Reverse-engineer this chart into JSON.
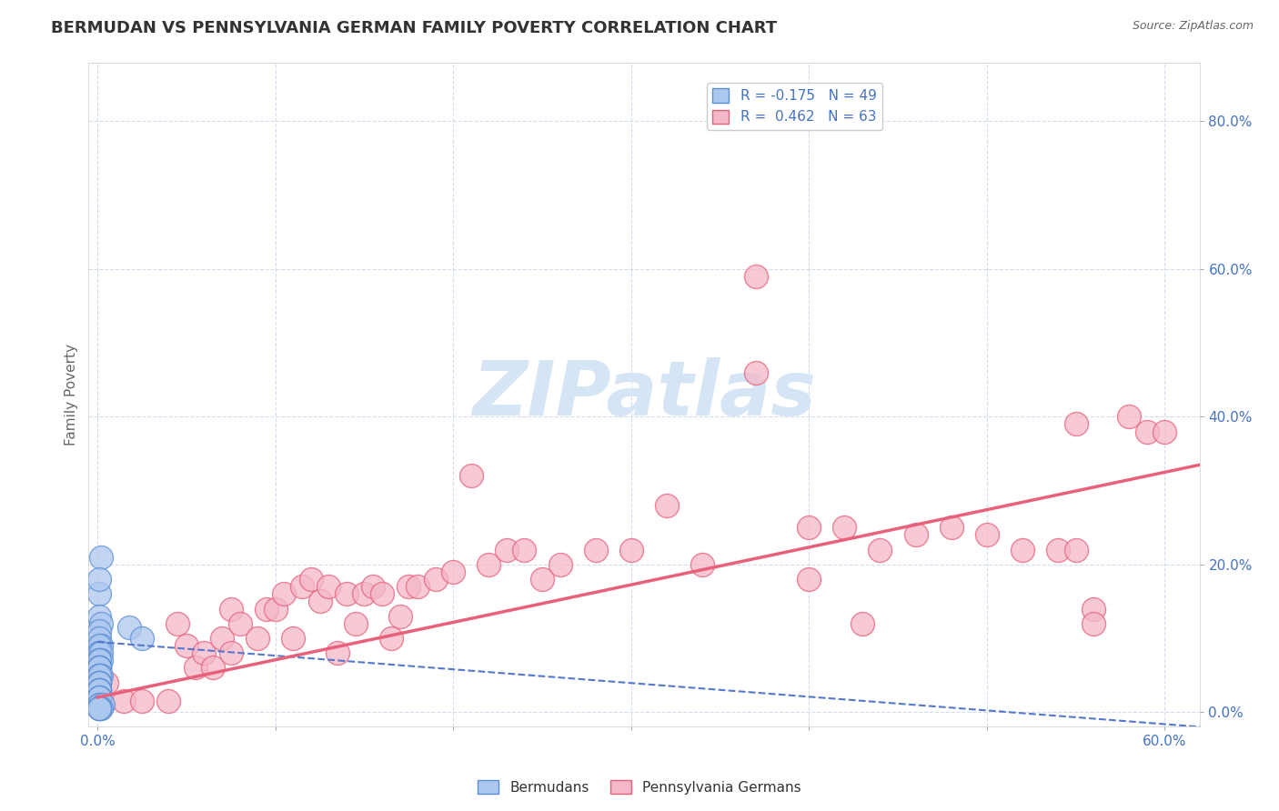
{
  "title": "BERMUDAN VS PENNSYLVANIA GERMAN FAMILY POVERTY CORRELATION CHART",
  "source": "Source: ZipAtlas.com",
  "ylabel": "Family Poverty",
  "xlim": [
    -0.005,
    0.62
  ],
  "ylim": [
    -0.02,
    0.88
  ],
  "xticks": [
    0.0,
    0.1,
    0.2,
    0.3,
    0.4,
    0.5,
    0.6
  ],
  "xtick_labels": [
    "0.0%",
    "",
    "",
    "",
    "",
    "",
    "60.0%"
  ],
  "yticks": [
    0.0,
    0.2,
    0.4,
    0.6,
    0.8
  ],
  "ytick_labels": [
    "0.0%",
    "20.0%",
    "40.0%",
    "60.0%",
    "80.0%"
  ],
  "legend1_label": "R = -0.175   N = 49",
  "legend2_label": "R =  0.462   N = 63",
  "blue_fill": "#adc8ee",
  "blue_edge": "#5b8dd9",
  "pink_fill": "#f4b8c8",
  "pink_edge": "#e8607a",
  "blue_line_color": "#5577cc",
  "pink_line_color": "#e8607a",
  "watermark": "ZIPatlas",
  "watermark_color": "#d6e5f5",
  "bottom_legend_blue": "Bermudans",
  "bottom_legend_pink": "Pennsylvania Germans",
  "title_fontsize": 13,
  "axis_label_fontsize": 11,
  "tick_fontsize": 11,
  "tick_color": "#4472c4",
  "grid_color": "#c8d4e8",
  "background_color": "#ffffff",
  "blue_trend_x0": 0.0,
  "blue_trend_y0": 0.095,
  "blue_trend_x1": 0.62,
  "blue_trend_y1": -0.02,
  "pink_trend_x0": 0.0,
  "pink_trend_y0": 0.02,
  "pink_trend_x1": 0.62,
  "pink_trend_y1": 0.335,
  "blue_scatter_x": [
    0.001,
    0.002,
    0.001,
    0.001,
    0.002,
    0.001,
    0.001,
    0.002,
    0.001,
    0.001,
    0.001,
    0.001,
    0.002,
    0.001,
    0.001,
    0.002,
    0.001,
    0.001,
    0.001,
    0.001,
    0.001,
    0.001,
    0.001,
    0.001,
    0.001,
    0.002,
    0.001,
    0.001,
    0.001,
    0.001,
    0.001,
    0.001,
    0.001,
    0.001,
    0.001,
    0.001,
    0.001,
    0.001,
    0.001,
    0.001,
    0.001,
    0.003,
    0.001,
    0.002,
    0.001,
    0.001,
    0.001,
    0.018,
    0.025
  ],
  "blue_scatter_y": [
    0.16,
    0.21,
    0.18,
    0.13,
    0.12,
    0.11,
    0.1,
    0.09,
    0.09,
    0.08,
    0.08,
    0.08,
    0.08,
    0.07,
    0.07,
    0.07,
    0.07,
    0.06,
    0.06,
    0.06,
    0.06,
    0.06,
    0.05,
    0.05,
    0.05,
    0.05,
    0.05,
    0.04,
    0.04,
    0.04,
    0.04,
    0.03,
    0.03,
    0.03,
    0.03,
    0.03,
    0.02,
    0.02,
    0.02,
    0.01,
    0.01,
    0.01,
    0.005,
    0.005,
    0.005,
    0.005,
    0.005,
    0.115,
    0.1
  ],
  "pink_scatter_x": [
    0.005,
    0.015,
    0.025,
    0.04,
    0.045,
    0.05,
    0.055,
    0.06,
    0.065,
    0.07,
    0.075,
    0.075,
    0.08,
    0.09,
    0.095,
    0.1,
    0.105,
    0.11,
    0.115,
    0.12,
    0.125,
    0.13,
    0.135,
    0.14,
    0.145,
    0.15,
    0.155,
    0.16,
    0.165,
    0.17,
    0.175,
    0.18,
    0.19,
    0.2,
    0.21,
    0.22,
    0.23,
    0.24,
    0.25,
    0.26,
    0.28,
    0.3,
    0.32,
    0.34,
    0.37,
    0.4,
    0.42,
    0.44,
    0.46,
    0.48,
    0.5,
    0.52,
    0.54,
    0.55,
    0.56,
    0.58,
    0.59,
    0.6,
    0.4,
    0.55,
    0.43,
    0.56,
    0.37
  ],
  "pink_scatter_y": [
    0.04,
    0.015,
    0.015,
    0.015,
    0.12,
    0.09,
    0.06,
    0.08,
    0.06,
    0.1,
    0.08,
    0.14,
    0.12,
    0.1,
    0.14,
    0.14,
    0.16,
    0.1,
    0.17,
    0.18,
    0.15,
    0.17,
    0.08,
    0.16,
    0.12,
    0.16,
    0.17,
    0.16,
    0.1,
    0.13,
    0.17,
    0.17,
    0.18,
    0.19,
    0.32,
    0.2,
    0.22,
    0.22,
    0.18,
    0.2,
    0.22,
    0.22,
    0.28,
    0.2,
    0.46,
    0.18,
    0.25,
    0.22,
    0.24,
    0.25,
    0.24,
    0.22,
    0.22,
    0.22,
    0.14,
    0.4,
    0.38,
    0.38,
    0.25,
    0.39,
    0.12,
    0.12,
    0.59
  ]
}
